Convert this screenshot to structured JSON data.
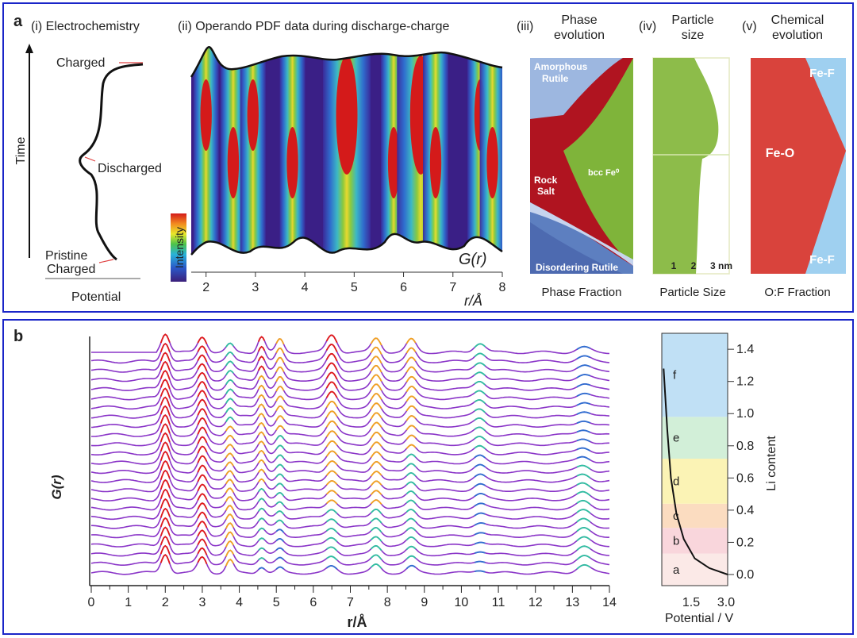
{
  "panel_a": {
    "letter": "a",
    "electrochemistry": {
      "title": "(i) Electrochemistry",
      "y_label": "Time",
      "x_label": "Potential",
      "states": [
        "Charged",
        "Discharged",
        "Pristine",
        "Charged"
      ]
    },
    "pdf": {
      "title": "(ii) Operando PDF data during discharge-charge",
      "intensity_label": "Intensity",
      "g_label": "G(r)",
      "x_label": "r/Å",
      "x_ticks": [
        "2",
        "3",
        "4",
        "5",
        "6",
        "7",
        "8"
      ]
    },
    "phase": {
      "title_1": "(iii)",
      "title_2": "Phase",
      "title_3": "evolution",
      "labels": [
        "Amorphous",
        "Rutile",
        "Rock",
        "Salt",
        "bcc Fe⁰",
        "Disordering Rutile"
      ],
      "caption": "Phase Fraction"
    },
    "particle": {
      "title_1": "(iv)",
      "title_2": "Particle",
      "title_3": "size",
      "ticks": [
        "1",
        "2",
        "3 nm"
      ],
      "caption": "Particle Size"
    },
    "chemical": {
      "title_1": "(v)",
      "title_2": "Chemical",
      "title_3": "evolution",
      "labels": [
        "Fe-F",
        "Fe-O",
        "Fe-F"
      ],
      "caption": "O:F Fraction"
    }
  },
  "panel_b": {
    "letter": "b",
    "g_axis_label": "G(r)",
    "x_axis_label": "r/Å",
    "x_ticks": [
      "0",
      "1",
      "2",
      "3",
      "4",
      "5",
      "6",
      "7",
      "8",
      "9",
      "10",
      "11",
      "12",
      "13",
      "14"
    ],
    "regions": [
      "a",
      "b",
      "c",
      "d",
      "e",
      "f"
    ],
    "region_colors": [
      "#fbe9e7",
      "#f9d6dc",
      "#fbdcc0",
      "#fbf3b5",
      "#d2efd8",
      "#c0e0f5"
    ],
    "li_ticks": [
      "0.0",
      "0.2",
      "0.4",
      "0.6",
      "0.8",
      "1.0",
      "1.2",
      "1.4"
    ],
    "li_label": "Li content",
    "potential_ticks": [
      "1.5",
      "3.0"
    ],
    "potential_label": "Potential / V"
  },
  "chart_data": [
    {
      "type": "line",
      "xlabel": "r/Å",
      "ylabel": "G(r)",
      "xlim": [
        0,
        14
      ],
      "series_count": 25,
      "peak_positions": [
        2.0,
        3.0,
        3.75,
        4.6,
        5.1,
        6.5,
        7.7,
        8.65,
        10.5,
        13.3
      ]
    },
    {
      "type": "line",
      "xlabel": "Potential / V",
      "ylabel": "Li content",
      "ylim": [
        0,
        1.45
      ],
      "x": [
        1.25,
        1.35,
        1.45,
        1.6,
        1.8,
        2.1,
        2.5,
        3.0
      ],
      "y": [
        1.28,
        0.9,
        0.6,
        0.38,
        0.22,
        0.1,
        0.04,
        0.0
      ]
    }
  ]
}
